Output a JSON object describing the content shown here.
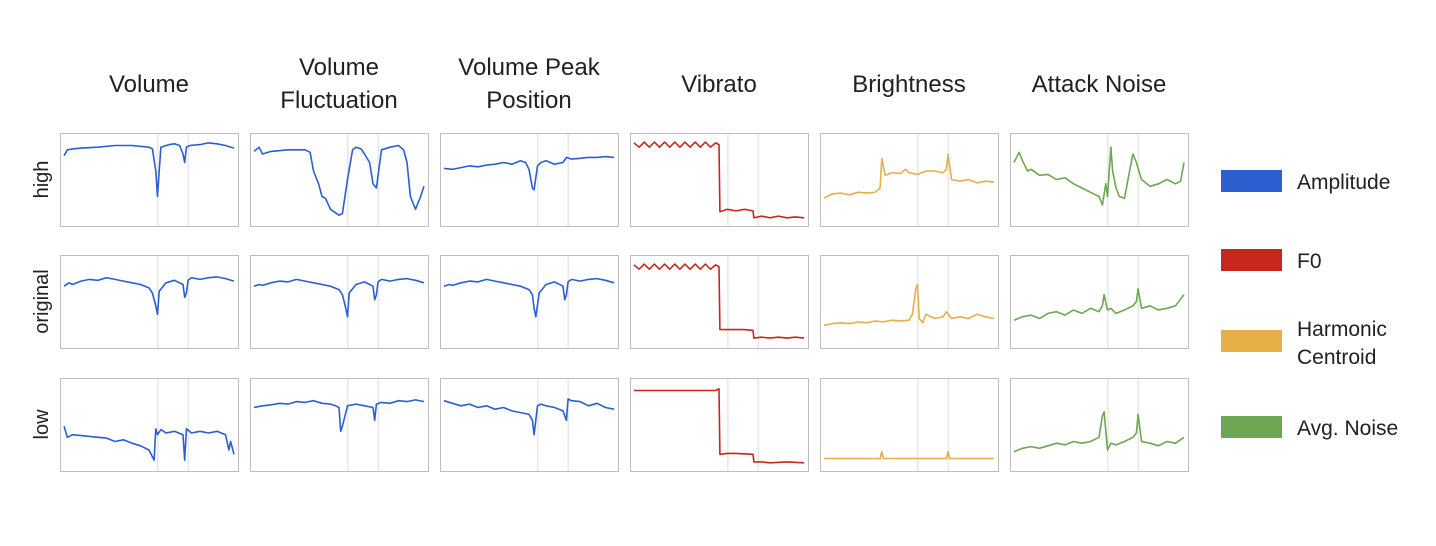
{
  "chart_data": {
    "type": "line",
    "columns": [
      "Volume",
      "Volume Fluctuation",
      "Volume Peak Position",
      "Vibrato",
      "Brightness",
      "Attack Noise"
    ],
    "column_header_lines": [
      [
        "Volume"
      ],
      [
        "Volume",
        "Fluctuation"
      ],
      [
        "Volume Peak",
        "Position"
      ],
      [
        "Vibrato"
      ],
      [
        "Brightness"
      ],
      [
        "Attack Noise"
      ]
    ],
    "rows": [
      "high",
      "original",
      "low"
    ],
    "legend": [
      {
        "name": "Amplitude",
        "lines": [
          "Amplitude"
        ],
        "color": "#2b5fd0"
      },
      {
        "name": "F0",
        "lines": [
          "F0"
        ],
        "color": "#c5281c"
      },
      {
        "name": "Harmonic Centroid",
        "lines": [
          "Harmonic",
          "Centroid"
        ],
        "color": "#e8ae48"
      },
      {
        "name": "Avg. Noise",
        "lines": [
          "Avg. Noise"
        ],
        "color": "#6ea653"
      }
    ],
    "legend_position": "right",
    "column_series": [
      "Amplitude",
      "Amplitude",
      "Amplitude",
      "F0",
      "Harmonic Centroid",
      "Avg. Noise"
    ],
    "x_range": [
      0,
      1
    ],
    "y_range": [
      0,
      1
    ],
    "axes_ticks": false,
    "vertical_markers": [
      0.55,
      0.72
    ],
    "panels": [
      [
        {
          "x": [
            0,
            0.02,
            0.05,
            0.1,
            0.2,
            0.3,
            0.4,
            0.5,
            0.52,
            0.54,
            0.55,
            0.56,
            0.57,
            0.6,
            0.62,
            0.65,
            0.68,
            0.7,
            0.71,
            0.72,
            0.74,
            0.8,
            0.85,
            0.9,
            0.95,
            1
          ],
          "y": [
            0.78,
            0.85,
            0.86,
            0.87,
            0.88,
            0.9,
            0.9,
            0.88,
            0.86,
            0.6,
            0.3,
            0.6,
            0.88,
            0.9,
            0.91,
            0.92,
            0.9,
            0.8,
            0.7,
            0.88,
            0.9,
            0.91,
            0.93,
            0.92,
            0.9,
            0.87
          ]
        },
        {
          "x": [
            0,
            0.03,
            0.05,
            0.1,
            0.2,
            0.3,
            0.33,
            0.35,
            0.38,
            0.4,
            0.42,
            0.45,
            0.5,
            0.52,
            0.55,
            0.58,
            0.6,
            0.63,
            0.65,
            0.68,
            0.7,
            0.72,
            0.75,
            0.8,
            0.85,
            0.88,
            0.9,
            0.92,
            0.95,
            0.98,
            1
          ],
          "y": [
            0.83,
            0.88,
            0.8,
            0.83,
            0.85,
            0.85,
            0.82,
            0.6,
            0.45,
            0.3,
            0.28,
            0.15,
            0.08,
            0.1,
            0.5,
            0.85,
            0.88,
            0.86,
            0.8,
            0.7,
            0.45,
            0.4,
            0.85,
            0.88,
            0.9,
            0.85,
            0.7,
            0.3,
            0.15,
            0.3,
            0.42
          ]
        },
        {
          "x": [
            0,
            0.05,
            0.1,
            0.15,
            0.2,
            0.25,
            0.3,
            0.35,
            0.4,
            0.45,
            0.48,
            0.5,
            0.52,
            0.53,
            0.55,
            0.57,
            0.6,
            0.65,
            0.7,
            0.72,
            0.75,
            0.8,
            0.85,
            0.9,
            0.95,
            1
          ],
          "y": [
            0.63,
            0.62,
            0.64,
            0.66,
            0.65,
            0.67,
            0.68,
            0.7,
            0.68,
            0.72,
            0.7,
            0.62,
            0.4,
            0.38,
            0.66,
            0.7,
            0.72,
            0.68,
            0.7,
            0.76,
            0.74,
            0.75,
            0.76,
            0.76,
            0.77,
            0.76
          ]
        },
        {
          "x": [
            0,
            0.03,
            0.06,
            0.09,
            0.12,
            0.15,
            0.18,
            0.21,
            0.24,
            0.27,
            0.3,
            0.33,
            0.36,
            0.39,
            0.42,
            0.45,
            0.48,
            0.5,
            0.505,
            0.55,
            0.6,
            0.65,
            0.7,
            0.705,
            0.75,
            0.8,
            0.85,
            0.9,
            0.95,
            1
          ],
          "y": [
            0.93,
            0.88,
            0.94,
            0.88,
            0.94,
            0.88,
            0.94,
            0.88,
            0.94,
            0.88,
            0.94,
            0.88,
            0.94,
            0.88,
            0.94,
            0.88,
            0.93,
            0.91,
            0.12,
            0.15,
            0.13,
            0.15,
            0.13,
            0.05,
            0.07,
            0.05,
            0.07,
            0.05,
            0.06,
            0.05
          ]
        },
        {
          "x": [
            0,
            0.05,
            0.1,
            0.15,
            0.2,
            0.25,
            0.3,
            0.33,
            0.34,
            0.36,
            0.4,
            0.45,
            0.48,
            0.5,
            0.55,
            0.6,
            0.65,
            0.7,
            0.72,
            0.73,
            0.75,
            0.8,
            0.85,
            0.9,
            0.95,
            1
          ],
          "y": [
            0.28,
            0.33,
            0.34,
            0.32,
            0.35,
            0.34,
            0.35,
            0.4,
            0.75,
            0.55,
            0.58,
            0.57,
            0.62,
            0.58,
            0.56,
            0.6,
            0.6,
            0.58,
            0.62,
            0.8,
            0.5,
            0.48,
            0.5,
            0.46,
            0.48,
            0.47
          ]
        },
        {
          "x": [
            0,
            0.03,
            0.05,
            0.08,
            0.1,
            0.15,
            0.2,
            0.25,
            0.3,
            0.35,
            0.4,
            0.45,
            0.5,
            0.52,
            0.54,
            0.55,
            0.57,
            0.58,
            0.6,
            0.62,
            0.65,
            0.68,
            0.7,
            0.72,
            0.75,
            0.8,
            0.85,
            0.9,
            0.95,
            0.98,
            1
          ],
          "y": [
            0.7,
            0.82,
            0.72,
            0.6,
            0.62,
            0.55,
            0.56,
            0.5,
            0.52,
            0.45,
            0.4,
            0.35,
            0.3,
            0.2,
            0.45,
            0.3,
            0.88,
            0.6,
            0.4,
            0.3,
            0.28,
            0.6,
            0.8,
            0.7,
            0.5,
            0.42,
            0.45,
            0.5,
            0.45,
            0.48,
            0.7
          ]
        }
      ],
      [
        {
          "x": [
            0,
            0.03,
            0.05,
            0.1,
            0.15,
            0.2,
            0.25,
            0.3,
            0.35,
            0.4,
            0.45,
            0.5,
            0.52,
            0.54,
            0.55,
            0.56,
            0.6,
            0.65,
            0.7,
            0.71,
            0.72,
            0.73,
            0.75,
            0.8,
            0.85,
            0.9,
            0.95,
            1
          ],
          "y": [
            0.68,
            0.72,
            0.7,
            0.74,
            0.76,
            0.75,
            0.78,
            0.76,
            0.74,
            0.72,
            0.7,
            0.66,
            0.6,
            0.45,
            0.35,
            0.62,
            0.72,
            0.75,
            0.7,
            0.55,
            0.6,
            0.75,
            0.78,
            0.76,
            0.78,
            0.79,
            0.77,
            0.74
          ]
        },
        {
          "x": [
            0,
            0.03,
            0.05,
            0.1,
            0.15,
            0.2,
            0.25,
            0.3,
            0.35,
            0.4,
            0.45,
            0.5,
            0.52,
            0.54,
            0.55,
            0.56,
            0.6,
            0.65,
            0.7,
            0.71,
            0.72,
            0.73,
            0.75,
            0.8,
            0.85,
            0.9,
            0.95,
            1
          ],
          "y": [
            0.68,
            0.7,
            0.69,
            0.72,
            0.74,
            0.73,
            0.76,
            0.74,
            0.72,
            0.7,
            0.68,
            0.64,
            0.58,
            0.42,
            0.32,
            0.6,
            0.7,
            0.73,
            0.68,
            0.52,
            0.58,
            0.73,
            0.76,
            0.74,
            0.76,
            0.77,
            0.75,
            0.72
          ]
        },
        {
          "x": [
            0,
            0.03,
            0.05,
            0.1,
            0.15,
            0.2,
            0.25,
            0.3,
            0.35,
            0.4,
            0.45,
            0.5,
            0.52,
            0.53,
            0.54,
            0.56,
            0.6,
            0.65,
            0.7,
            0.71,
            0.72,
            0.73,
            0.75,
            0.8,
            0.85,
            0.9,
            0.95,
            1
          ],
          "y": [
            0.68,
            0.7,
            0.69,
            0.72,
            0.74,
            0.73,
            0.76,
            0.74,
            0.72,
            0.7,
            0.68,
            0.64,
            0.58,
            0.42,
            0.32,
            0.6,
            0.7,
            0.73,
            0.68,
            0.52,
            0.58,
            0.73,
            0.76,
            0.74,
            0.76,
            0.77,
            0.75,
            0.72
          ]
        },
        {
          "x": [
            0,
            0.03,
            0.06,
            0.09,
            0.12,
            0.15,
            0.18,
            0.21,
            0.24,
            0.27,
            0.3,
            0.33,
            0.36,
            0.39,
            0.42,
            0.45,
            0.48,
            0.5,
            0.505,
            0.55,
            0.6,
            0.65,
            0.7,
            0.705,
            0.75,
            0.8,
            0.85,
            0.9,
            0.95,
            1
          ],
          "y": [
            0.93,
            0.88,
            0.94,
            0.88,
            0.94,
            0.88,
            0.94,
            0.88,
            0.94,
            0.88,
            0.94,
            0.88,
            0.94,
            0.88,
            0.94,
            0.88,
            0.93,
            0.91,
            0.17,
            0.17,
            0.17,
            0.17,
            0.16,
            0.07,
            0.08,
            0.07,
            0.08,
            0.07,
            0.08,
            0.07
          ]
        },
        {
          "x": [
            0,
            0.05,
            0.1,
            0.15,
            0.2,
            0.25,
            0.3,
            0.35,
            0.4,
            0.45,
            0.5,
            0.52,
            0.54,
            0.55,
            0.56,
            0.58,
            0.6,
            0.65,
            0.7,
            0.72,
            0.75,
            0.8,
            0.85,
            0.9,
            0.95,
            1
          ],
          "y": [
            0.22,
            0.24,
            0.25,
            0.24,
            0.26,
            0.25,
            0.27,
            0.26,
            0.28,
            0.27,
            0.28,
            0.35,
            0.65,
            0.7,
            0.3,
            0.25,
            0.35,
            0.3,
            0.32,
            0.38,
            0.3,
            0.32,
            0.3,
            0.35,
            0.32,
            0.3
          ]
        },
        {
          "x": [
            0,
            0.05,
            0.1,
            0.15,
            0.2,
            0.25,
            0.3,
            0.35,
            0.4,
            0.45,
            0.5,
            0.52,
            0.53,
            0.55,
            0.57,
            0.6,
            0.65,
            0.7,
            0.72,
            0.73,
            0.75,
            0.8,
            0.85,
            0.9,
            0.95,
            1
          ],
          "y": [
            0.28,
            0.32,
            0.34,
            0.3,
            0.36,
            0.38,
            0.34,
            0.4,
            0.36,
            0.42,
            0.38,
            0.45,
            0.58,
            0.4,
            0.42,
            0.36,
            0.4,
            0.45,
            0.5,
            0.65,
            0.42,
            0.45,
            0.4,
            0.42,
            0.45,
            0.58
          ]
        }
      ],
      [
        {
          "x": [
            0,
            0.02,
            0.05,
            0.1,
            0.15,
            0.2,
            0.25,
            0.3,
            0.35,
            0.4,
            0.45,
            0.5,
            0.52,
            0.53,
            0.54,
            0.55,
            0.57,
            0.6,
            0.65,
            0.7,
            0.71,
            0.72,
            0.75,
            0.8,
            0.85,
            0.9,
            0.95,
            0.97,
            0.98,
            1
          ],
          "y": [
            0.48,
            0.35,
            0.38,
            0.37,
            0.36,
            0.35,
            0.34,
            0.3,
            0.32,
            0.28,
            0.25,
            0.2,
            0.12,
            0.08,
            0.45,
            0.38,
            0.44,
            0.4,
            0.42,
            0.38,
            0.08,
            0.45,
            0.4,
            0.42,
            0.4,
            0.42,
            0.38,
            0.2,
            0.3,
            0.15
          ]
        },
        {
          "x": [
            0,
            0.05,
            0.1,
            0.15,
            0.2,
            0.25,
            0.3,
            0.35,
            0.4,
            0.45,
            0.48,
            0.5,
            0.51,
            0.52,
            0.55,
            0.6,
            0.65,
            0.7,
            0.71,
            0.72,
            0.75,
            0.8,
            0.85,
            0.9,
            0.95,
            1
          ],
          "y": [
            0.7,
            0.72,
            0.73,
            0.75,
            0.74,
            0.77,
            0.76,
            0.78,
            0.75,
            0.74,
            0.72,
            0.7,
            0.42,
            0.48,
            0.72,
            0.74,
            0.72,
            0.7,
            0.55,
            0.74,
            0.76,
            0.75,
            0.78,
            0.77,
            0.79,
            0.77
          ]
        },
        {
          "x": [
            0,
            0.05,
            0.1,
            0.15,
            0.2,
            0.25,
            0.3,
            0.35,
            0.4,
            0.45,
            0.5,
            0.52,
            0.53,
            0.55,
            0.57,
            0.6,
            0.65,
            0.7,
            0.72,
            0.73,
            0.75,
            0.8,
            0.85,
            0.9,
            0.95,
            1
          ],
          "y": [
            0.78,
            0.75,
            0.72,
            0.74,
            0.7,
            0.72,
            0.68,
            0.7,
            0.66,
            0.64,
            0.62,
            0.55,
            0.38,
            0.72,
            0.74,
            0.72,
            0.7,
            0.66,
            0.55,
            0.8,
            0.78,
            0.77,
            0.72,
            0.75,
            0.7,
            0.68
          ]
        },
        {
          "x": [
            0,
            0.1,
            0.2,
            0.3,
            0.4,
            0.48,
            0.5,
            0.505,
            0.55,
            0.6,
            0.7,
            0.705,
            0.75,
            0.8,
            0.9,
            1
          ],
          "y": [
            0.9,
            0.9,
            0.9,
            0.9,
            0.9,
            0.9,
            0.92,
            0.15,
            0.16,
            0.16,
            0.15,
            0.06,
            0.06,
            0.05,
            0.06,
            0.05
          ]
        },
        {
          "x": [
            0,
            0.1,
            0.2,
            0.3,
            0.33,
            0.34,
            0.35,
            0.4,
            0.5,
            0.6,
            0.7,
            0.72,
            0.73,
            0.74,
            0.8,
            0.9,
            1
          ],
          "y": [
            0.1,
            0.1,
            0.1,
            0.1,
            0.1,
            0.18,
            0.1,
            0.1,
            0.1,
            0.1,
            0.1,
            0.1,
            0.18,
            0.1,
            0.1,
            0.1,
            0.1
          ]
        },
        {
          "x": [
            0,
            0.05,
            0.1,
            0.15,
            0.2,
            0.25,
            0.3,
            0.35,
            0.4,
            0.45,
            0.5,
            0.52,
            0.53,
            0.55,
            0.57,
            0.6,
            0.65,
            0.7,
            0.72,
            0.73,
            0.75,
            0.8,
            0.85,
            0.9,
            0.95,
            1
          ],
          "y": [
            0.18,
            0.22,
            0.24,
            0.22,
            0.25,
            0.28,
            0.26,
            0.3,
            0.28,
            0.3,
            0.35,
            0.6,
            0.65,
            0.2,
            0.28,
            0.26,
            0.3,
            0.35,
            0.4,
            0.62,
            0.3,
            0.28,
            0.25,
            0.3,
            0.28,
            0.35
          ]
        }
      ]
    ]
  }
}
